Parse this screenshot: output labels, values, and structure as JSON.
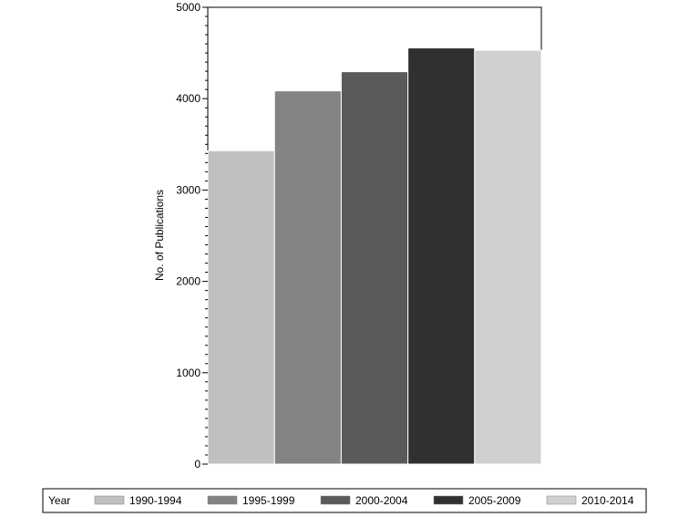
{
  "chart_data": {
    "type": "bar",
    "title": "",
    "xlabel": "",
    "ylabel": "No. of Publications",
    "ylim": [
      0,
      5000
    ],
    "yticks": [
      0,
      1000,
      2000,
      3000,
      4000,
      5000
    ],
    "categories": [
      "1990-1994",
      "1995-1999",
      "2000-2004",
      "2005-2009",
      "2010-2014"
    ],
    "values": [
      3430,
      4085,
      4295,
      4555,
      4530
    ],
    "colors": [
      "#c0c0c0",
      "#838383",
      "#5a5a5a",
      "#303030",
      "#d0d0d0"
    ],
    "grid": false,
    "legend": {
      "title": "Year",
      "placement": "bottom",
      "entries": [
        "1990-1994",
        "1995-1999",
        "2000-2004",
        "2005-2009",
        "2010-2014"
      ]
    }
  }
}
